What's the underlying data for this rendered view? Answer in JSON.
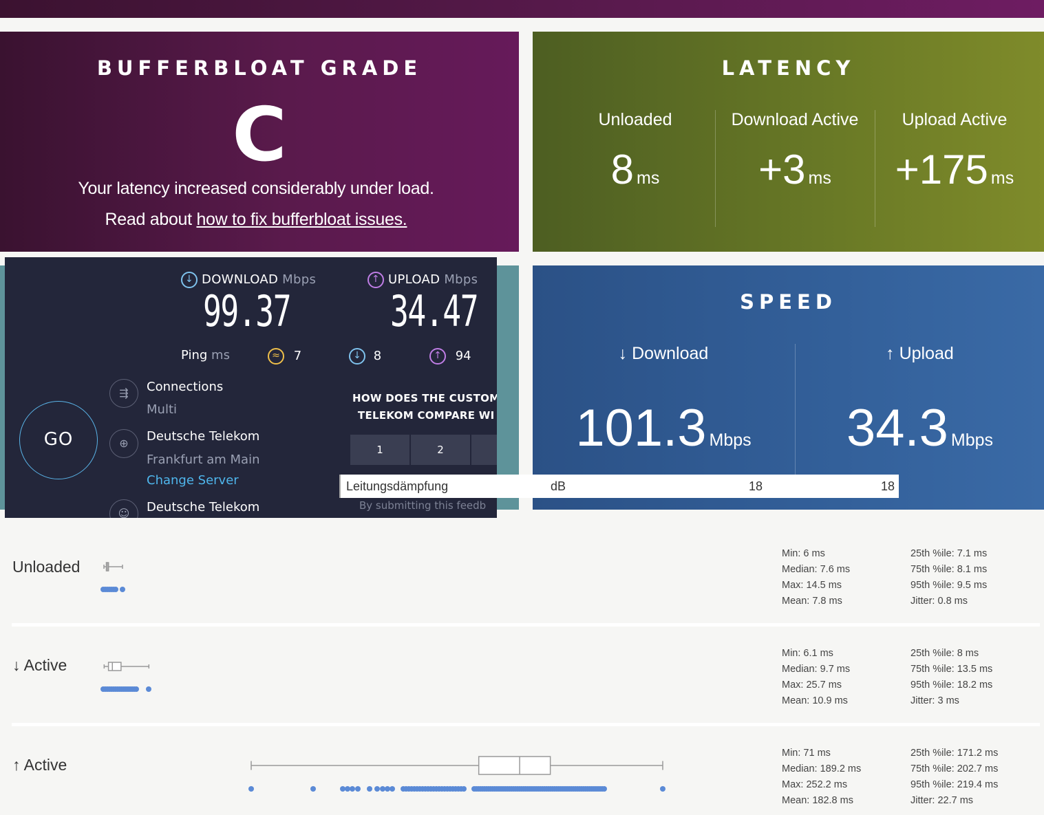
{
  "grade": {
    "title": "BUFFERBLOAT GRADE",
    "letter": "C",
    "message": "Your latency increased considerably under load.",
    "read_prefix": "Read about ",
    "link_text": "how to fix bufferbloat issues."
  },
  "latency": {
    "title": "LATENCY",
    "unloaded_label": "Unloaded",
    "unloaded_value": "8",
    "download_label": "Download Active",
    "download_value": "+3",
    "upload_label": "Upload Active",
    "upload_value": "+175",
    "unit": "ms"
  },
  "speed": {
    "title": "SPEED",
    "download_label": "↓ Download",
    "download_value": "101.3",
    "upload_label": "↑ Upload",
    "upload_value": "34.3",
    "unit": "Mbps"
  },
  "ookla": {
    "download_label": "DOWNLOAD",
    "download_unit": "Mbps",
    "download_value": "99.37",
    "upload_label": "UPLOAD",
    "upload_unit": "Mbps",
    "upload_value": "34.47",
    "ping_label": "Ping",
    "ping_unit": "ms",
    "ping_idle": "7",
    "ping_download": "8",
    "ping_upload": "94",
    "go_label": "GO",
    "connections_label": "Connections",
    "connections_value": "Multi",
    "server_name": "Deutsche Telekom",
    "server_location": "Frankfurt am Main",
    "change_server": "Change Server",
    "provider_name": "Deutsche Telekom",
    "survey_line1": "HOW DOES THE CUSTOM",
    "survey_line2": "TELEKOM COMPARE WI",
    "rating_1": "1",
    "rating_2": "2",
    "consent": "By submitting this feedb"
  },
  "table_row": {
    "label": "Leitungsdämpfung",
    "unit": "dB",
    "value1": "18",
    "value2": "18"
  },
  "rows": [
    {
      "name": "Unloaded",
      "min": "Min: 6 ms",
      "median": "Median: 7.6 ms",
      "max": "Max: 14.5 ms",
      "mean": "Mean: 7.8 ms",
      "p25": "25th %ile: 7.1 ms",
      "p75": "75th %ile: 8.1 ms",
      "p95": "95th %ile: 9.5 ms",
      "jitter": "Jitter: 0.8 ms",
      "box_ms": {
        "min": 6,
        "q1": 7.1,
        "median": 7.6,
        "q3": 8.1,
        "max": 14.5
      }
    },
    {
      "name": "↓ Active",
      "min": "Min: 6.1 ms",
      "median": "Median: 9.7 ms",
      "max": "Max: 25.7 ms",
      "mean": "Mean: 10.9 ms",
      "p25": "25th %ile: 8 ms",
      "p75": "75th %ile: 13.5 ms",
      "p95": "95th %ile: 18.2 ms",
      "jitter": "Jitter: 3 ms",
      "box_ms": {
        "min": 6.1,
        "q1": 8,
        "median": 9.7,
        "q3": 13.5,
        "max": 25.7
      }
    },
    {
      "name": "↑ Active",
      "min": "Min: 71 ms",
      "median": "Median: 189.2 ms",
      "max": "Max: 252.2 ms",
      "mean": "Mean: 182.8 ms",
      "p25": "25th %ile: 171.2 ms",
      "p75": "75th %ile: 202.7 ms",
      "p95": "95th %ile: 219.4 ms",
      "jitter": "Jitter: 22.7 ms",
      "box_ms": {
        "min": 71,
        "q1": 171.2,
        "median": 189.2,
        "q3": 202.7,
        "max": 252.2
      }
    }
  ],
  "colors": {
    "grade_bg": "#5a1a4c",
    "latency_bg": "#6a7a26",
    "speed_bg": "#33609a",
    "dots": "#5b8ad6",
    "ookla_bg": "#23263a",
    "ookla_link": "#4fb6ec"
  }
}
